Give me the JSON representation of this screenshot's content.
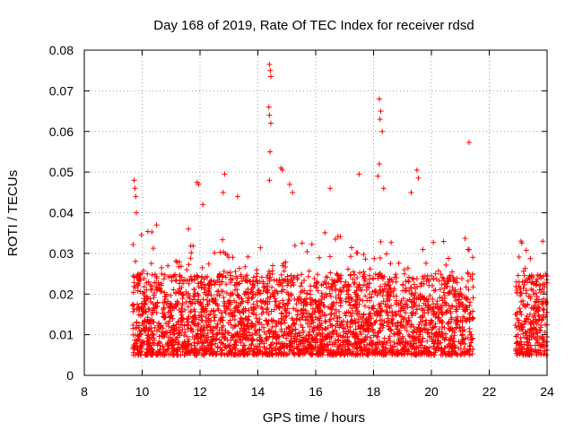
{
  "chart_data": {
    "type": "scatter",
    "title": "Day 168 of 2019, Rate Of TEC Index for receiver rdsd",
    "xlabel": "GPS time / hours",
    "ylabel": "ROTI / TECUs",
    "xlim": [
      8,
      24
    ],
    "ylim": [
      0,
      0.08
    ],
    "xticks": [
      8,
      10,
      12,
      14,
      16,
      18,
      20,
      22,
      24
    ],
    "yticks": [
      0,
      0.01,
      0.02,
      0.03,
      0.04,
      0.05,
      0.06,
      0.07,
      0.08
    ],
    "xtick_labels": [
      "8",
      "10",
      "12",
      "14",
      "16",
      "18",
      "20",
      "22",
      "24"
    ],
    "ytick_labels": [
      "0",
      "0.01",
      "0.02",
      "0.03",
      "0.04",
      "0.05",
      "0.06",
      "0.07",
      "0.08"
    ],
    "grid": true,
    "marker": "+",
    "marker_color": "#ff0000",
    "data_segments": [
      {
        "x_start": 9.65,
        "x_end": 21.45,
        "typical_range": [
          0.005,
          0.025
        ]
      },
      {
        "x_start": 22.9,
        "x_end": 24.0,
        "typical_range": [
          0.005,
          0.025
        ]
      }
    ],
    "peaks": [
      {
        "x": 9.72,
        "y": 0.048
      },
      {
        "x": 9.75,
        "y": 0.046
      },
      {
        "x": 9.78,
        "y": 0.044
      },
      {
        "x": 9.8,
        "y": 0.04
      },
      {
        "x": 10.5,
        "y": 0.037
      },
      {
        "x": 11.6,
        "y": 0.036
      },
      {
        "x": 11.9,
        "y": 0.0475
      },
      {
        "x": 11.95,
        "y": 0.047
      },
      {
        "x": 12.1,
        "y": 0.042
      },
      {
        "x": 12.8,
        "y": 0.045
      },
      {
        "x": 12.85,
        "y": 0.0495
      },
      {
        "x": 13.3,
        "y": 0.044
      },
      {
        "x": 14.4,
        "y": 0.0765
      },
      {
        "x": 14.43,
        "y": 0.075
      },
      {
        "x": 14.45,
        "y": 0.0735
      },
      {
        "x": 14.38,
        "y": 0.066
      },
      {
        "x": 14.4,
        "y": 0.064
      },
      {
        "x": 14.45,
        "y": 0.062
      },
      {
        "x": 14.42,
        "y": 0.055
      },
      {
        "x": 14.4,
        "y": 0.048
      },
      {
        "x": 14.8,
        "y": 0.051
      },
      {
        "x": 14.85,
        "y": 0.0505
      },
      {
        "x": 15.1,
        "y": 0.047
      },
      {
        "x": 15.2,
        "y": 0.045
      },
      {
        "x": 16.5,
        "y": 0.046
      },
      {
        "x": 17.5,
        "y": 0.0495
      },
      {
        "x": 18.2,
        "y": 0.068
      },
      {
        "x": 18.25,
        "y": 0.065
      },
      {
        "x": 18.22,
        "y": 0.063
      },
      {
        "x": 18.3,
        "y": 0.06
      },
      {
        "x": 18.2,
        "y": 0.052
      },
      {
        "x": 18.15,
        "y": 0.049
      },
      {
        "x": 18.35,
        "y": 0.046
      },
      {
        "x": 19.5,
        "y": 0.0505
      },
      {
        "x": 19.55,
        "y": 0.0485
      },
      {
        "x": 19.3,
        "y": 0.045
      },
      {
        "x": 21.3,
        "y": 0.0573
      },
      {
        "x": 23.1,
        "y": 0.033
      },
      {
        "x": 23.85,
        "y": 0.033
      }
    ]
  }
}
